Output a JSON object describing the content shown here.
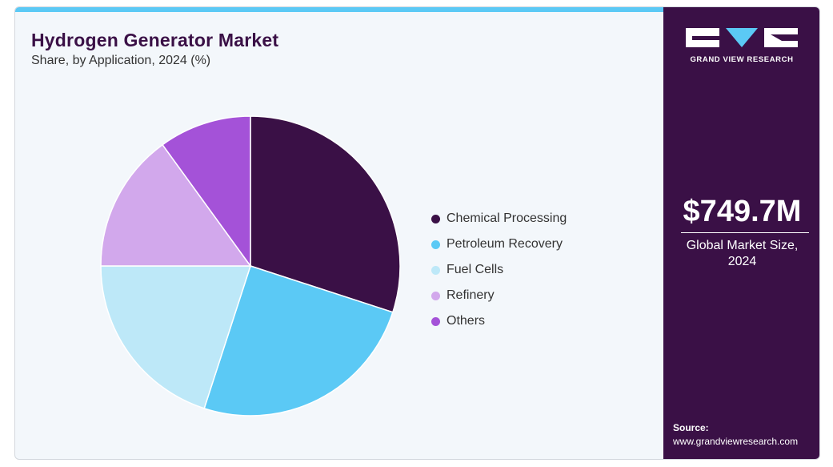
{
  "header": {
    "title": "Hydrogen Generator Market",
    "subtitle": "Share, by Application, 2024 (%)"
  },
  "chart_data": {
    "type": "pie",
    "title": "Hydrogen Generator Market",
    "subtitle": "Share, by Application, 2024 (%)",
    "categories": [
      "Chemical Processing",
      "Petroleum Recovery",
      "Fuel Cells",
      "Refinery",
      "Others"
    ],
    "values": [
      30,
      25,
      20,
      15,
      10
    ],
    "colors": [
      "#3a1046",
      "#5bc9f5",
      "#bde8f8",
      "#d2a8ec",
      "#a452d8"
    ],
    "legend_position": "right"
  },
  "sidebar": {
    "brand": "GRAND VIEW RESEARCH",
    "market_size": "$749.7M",
    "market_size_label": "Global Market Size, 2024",
    "source_label": "Source:",
    "source_url": "www.grandviewresearch.com"
  },
  "colors": {
    "accent_bar": "#5bc9f5",
    "sidebar_bg": "#3a1046",
    "title": "#3a1046"
  }
}
